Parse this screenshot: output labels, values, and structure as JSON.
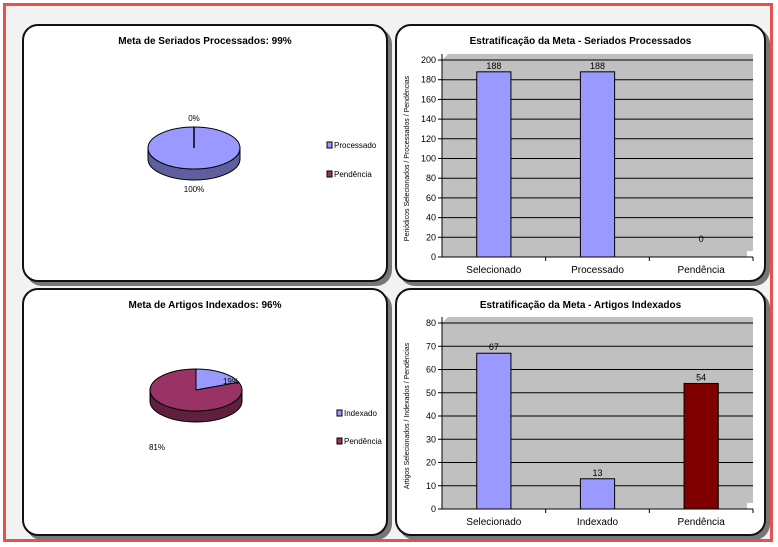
{
  "colors": {
    "blue": "#9999ff",
    "blueDark": "#5555aa",
    "maroon": "#993366",
    "maroonDark": "#4a1a30",
    "darkred": "#800000",
    "plotbg": "#c0c0c0"
  },
  "chart_data": [
    {
      "type": "pie",
      "title": "Meta de Seriados Processados: 99%",
      "labels": [
        "Processado",
        "Pendência"
      ],
      "values": [
        100,
        0
      ],
      "data_labels": [
        "100%",
        "0%"
      ],
      "colors": [
        "#9999ff",
        "#993366"
      ],
      "legend": "right"
    },
    {
      "type": "bar",
      "title": "Estratificação da Meta - Seriados Processados",
      "ylabel": "Periódicos Selecionados / Processados / Pendências",
      "categories": [
        "Selecionado",
        "Processado",
        "Pendência"
      ],
      "values": [
        188,
        188,
        0
      ],
      "ylim": [
        0,
        200
      ],
      "yticks": [
        0,
        20,
        40,
        60,
        80,
        100,
        120,
        140,
        160,
        180,
        200
      ],
      "colors": [
        "#9999ff",
        "#9999ff",
        "#9999ff"
      ],
      "grid": true
    },
    {
      "type": "pie",
      "title": "Meta de Artigos Indexados: 96%",
      "labels": [
        "Indexado",
        "Pendência"
      ],
      "values": [
        19,
        81
      ],
      "data_labels": [
        "19%",
        "81%"
      ],
      "colors": [
        "#9999ff",
        "#993366"
      ],
      "legend": "right"
    },
    {
      "type": "bar",
      "title": "Estratificação da Meta - Artigos Indexados",
      "ylabel": "Artigos Selecionados / Indexados / Pendências",
      "categories": [
        "Selecionado",
        "Indexado",
        "Pendência"
      ],
      "values": [
        67,
        13,
        54
      ],
      "ylim": [
        0,
        80
      ],
      "yticks": [
        0,
        10,
        20,
        30,
        40,
        50,
        60,
        70,
        80
      ],
      "colors": [
        "#9999ff",
        "#9999ff",
        "#800000"
      ],
      "grid": true
    }
  ]
}
